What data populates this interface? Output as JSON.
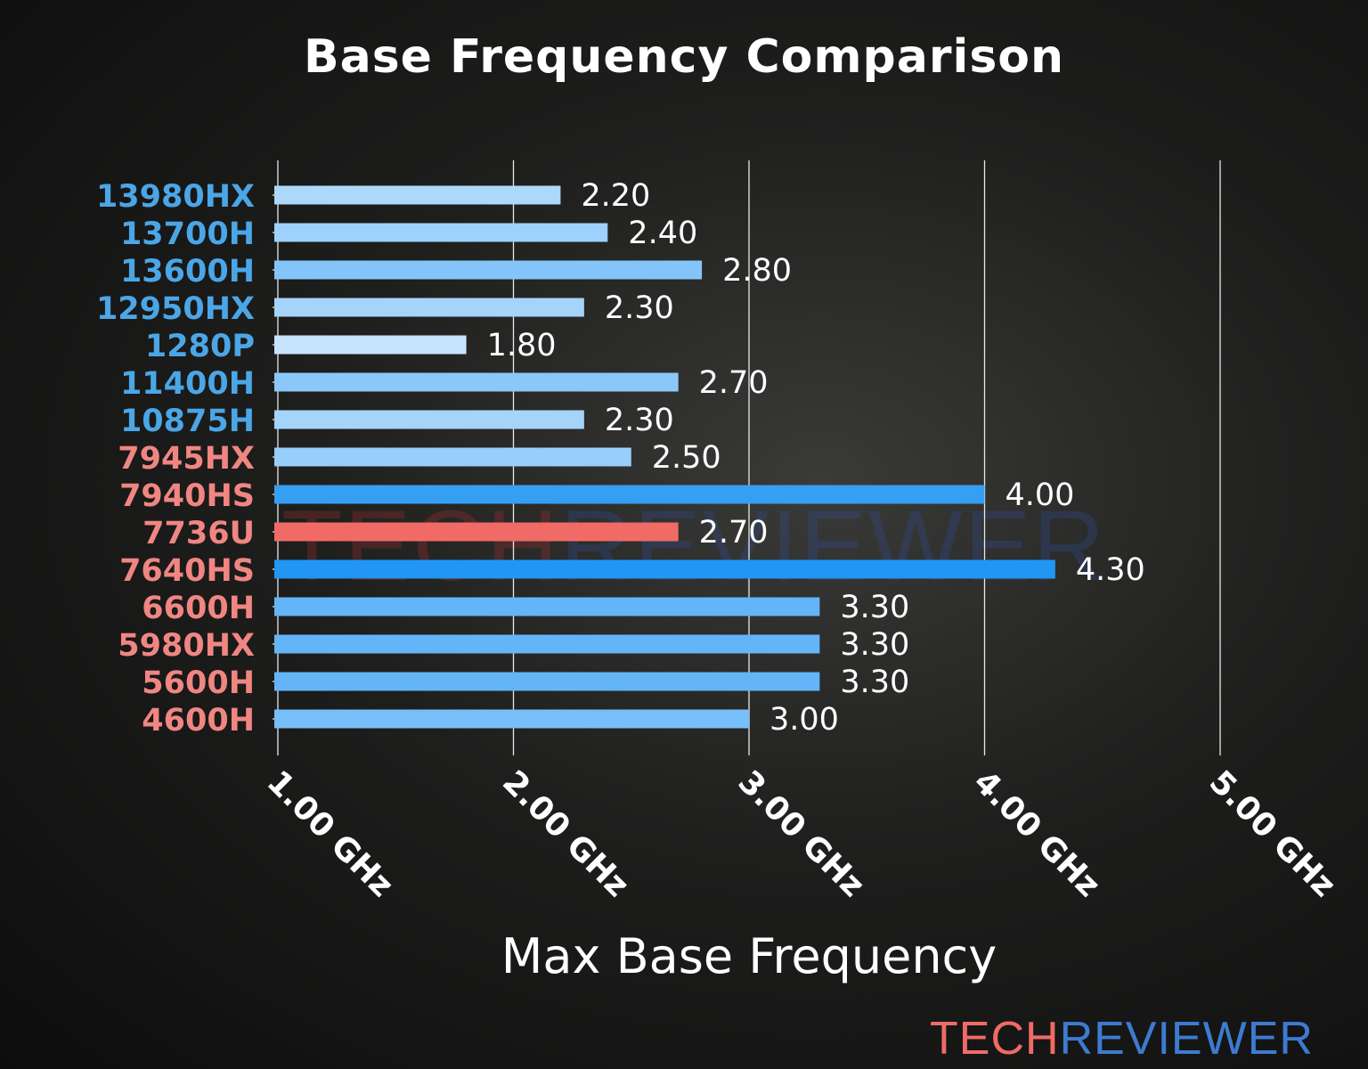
{
  "chart_data": {
    "type": "bar",
    "orientation": "horizontal",
    "title": "Base Frequency Comparison",
    "xlabel": "Max Base Frequency",
    "ylabel": "",
    "xlim": [
      1.0,
      5.0
    ],
    "xticks": [
      1,
      2,
      3,
      4,
      5
    ],
    "xtick_labels": [
      "1.00 GHz",
      "2.00 GHz",
      "3.00 GHz",
      "4.00 GHz",
      "5.00 GHz"
    ],
    "grid": "vertical",
    "categories": [
      "13980HX",
      "13700H",
      "13600H",
      "12950HX",
      "1280P",
      "11400H",
      "10875H",
      "7945HX",
      "7940HS",
      "7736U",
      "7640HS",
      "6600H",
      "5980HX",
      "5600H",
      "4600H"
    ],
    "values": [
      2.2,
      2.4,
      2.8,
      2.3,
      1.8,
      2.7,
      2.3,
      2.5,
      4.0,
      2.7,
      4.3,
      3.3,
      3.3,
      3.3,
      3.0
    ],
    "value_labels": [
      "2.20",
      "2.40",
      "2.80",
      "2.30",
      "1.80",
      "2.70",
      "2.30",
      "2.50",
      "4.00",
      "2.70",
      "4.30",
      "3.30",
      "3.30",
      "3.30",
      "3.00"
    ],
    "label_brand": [
      "intel",
      "intel",
      "intel",
      "intel",
      "intel",
      "intel",
      "intel",
      "amd",
      "amd",
      "amd",
      "amd",
      "amd",
      "amd",
      "amd",
      "amd"
    ],
    "highlight": "7736U"
  },
  "colors": {
    "intel_label": "#4ba6e6",
    "amd_label": "#f08682",
    "bar_low": "#c6e4fd",
    "bar_high": "#2196f3",
    "highlight_bar": "#f06b66",
    "logo_tech": "#f06b66",
    "logo_reviewer": "#3d7bd1"
  },
  "watermark": {
    "tech": "TECH",
    "reviewer": "REVIEWER"
  },
  "logo": {
    "tech": "TECH",
    "reviewer": "REVIEWER"
  }
}
